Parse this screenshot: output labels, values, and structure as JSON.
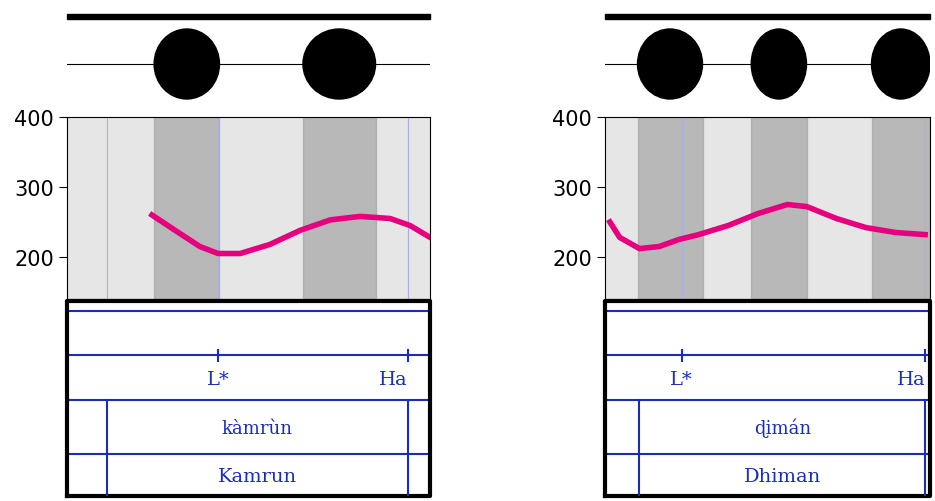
{
  "chart_data": [
    {
      "type": "line",
      "color": "#e6007e",
      "tick_labels": "y",
      "xlim": [
        0,
        1
      ],
      "ylim": [
        140,
        400
      ],
      "yticks": [
        200,
        300,
        400
      ],
      "x": [
        0.234,
        0.298,
        0.366,
        0.416,
        0.477,
        0.559,
        0.642,
        0.725,
        0.807,
        0.89,
        0.945,
        1.0
      ],
      "values": [
        260,
        238,
        215,
        205,
        205,
        218,
        238,
        253,
        258,
        255,
        245,
        228
      ],
      "tones": [
        {
          "x": 0.416,
          "label": "L*"
        },
        {
          "x": 0.939,
          "label": "Ha"
        }
      ],
      "interval": [
        0.11,
        0.939
      ],
      "transcription": "kàmrùn",
      "orthography": "Kamrun"
    },
    {
      "type": "line",
      "color": "#e6007e",
      "tick_labels": "y",
      "xlim": [
        0,
        1
      ],
      "ylim": [
        140,
        400
      ],
      "yticks": [
        200,
        300,
        400
      ],
      "x": [
        0.015,
        0.045,
        0.106,
        0.167,
        0.227,
        0.288,
        0.379,
        0.47,
        0.561,
        0.621,
        0.712,
        0.803,
        0.894,
        0.985
      ],
      "values": [
        250,
        228,
        212,
        215,
        225,
        232,
        245,
        262,
        275,
        272,
        255,
        242,
        235,
        232
      ],
      "tones": [
        {
          "x": 0.236,
          "label": "L*"
        },
        {
          "x": 0.985,
          "label": "Ha"
        }
      ],
      "interval": [
        0.106,
        0.985
      ],
      "transcription": "ɖimán",
      "orthography": "Dhiman"
    }
  ]
}
